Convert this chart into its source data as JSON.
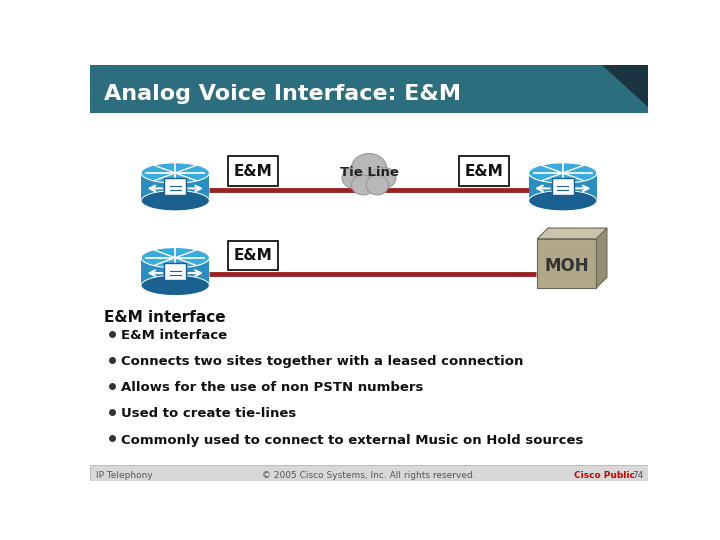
{
  "title": "Analog Voice Interface: E&M",
  "title_bg_color": "#2d6e7e",
  "title_text_color": "#ffffff",
  "title_fontsize": 16,
  "body_bg_color": "#ffffff",
  "line_color": "#992222",
  "line_width": 3.5,
  "em_box_color": "#ffffff",
  "em_box_border": "#000000",
  "em_label": "E&M",
  "tie_line_label": "Tie Line",
  "moh_label": "MOH",
  "section_title": "E&M interface",
  "section_title_fontsize": 11,
  "bullets": [
    "E&M interface",
    "Connects two sites together with a leased connection",
    "Allows for the use of non PSTN numbers",
    "Used to create tie-lines",
    "Commonly used to connect to external Music on Hold sources"
  ],
  "bullet_fontsize": 9.5,
  "footer_text": "IP Telephony",
  "footer_copy": "© 2005 Cisco Systems, Inc. All rights reserved.",
  "footer_cisco": "Cisco Public",
  "footer_page": "74",
  "footer_bg_color": "#d8d8d8",
  "footer_text_color": "#555555",
  "footer_cisco_color": "#cc0000",
  "router_blue_light": "#2a8fc0",
  "router_blue_dark": "#1a6090",
  "router_blue_top": "#3aabdc",
  "cloud_color": "#b8b8b8",
  "cloud_edge": "#999999",
  "moh_front": "#b0a888",
  "moh_top": "#ccc4aa",
  "moh_right": "#948c74",
  "moh_edge": "#666655"
}
